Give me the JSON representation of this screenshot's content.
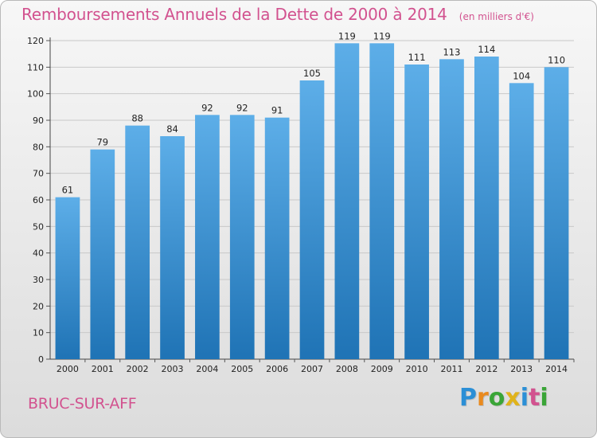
{
  "header": {
    "title": "Remboursements Annuels de la Dette de 2000 à 2014",
    "unit": "(en milliers d'€)"
  },
  "footer": {
    "commune": "BRUC-SUR-AFF",
    "logo": "Proxiti",
    "logo_colors": [
      "#2b8fd6",
      "#e98a1e",
      "#3aa537",
      "#e0b31b",
      "#2b8fd6",
      "#d2528f",
      "#3aa537"
    ]
  },
  "colors": {
    "accent": "#d2528f",
    "bar_top": "#5daee8",
    "bar_bottom": "#1f73b5"
  },
  "chart_data": {
    "type": "bar",
    "categories": [
      "2000",
      "2001",
      "2002",
      "2003",
      "2004",
      "2005",
      "2006",
      "2007",
      "2008",
      "2009",
      "2010",
      "2011",
      "2012",
      "2013",
      "2014"
    ],
    "values": [
      61,
      79,
      88,
      84,
      92,
      92,
      91,
      105,
      119,
      119,
      111,
      113,
      114,
      104,
      110
    ],
    "title": "Remboursements Annuels de la Dette de 2000 à 2014",
    "xlabel": "",
    "ylabel": "",
    "ylim": [
      0,
      120
    ],
    "yticks": [
      0,
      10,
      20,
      30,
      40,
      50,
      60,
      70,
      80,
      90,
      100,
      110,
      120
    ],
    "grid": true,
    "data_labels": true
  }
}
